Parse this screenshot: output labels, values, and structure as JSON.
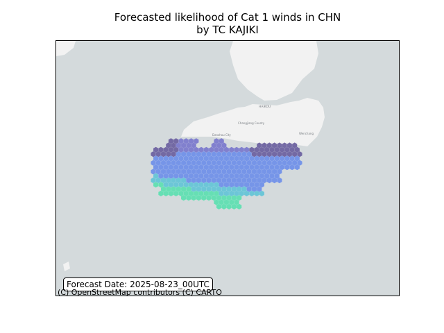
{
  "title": {
    "line1": "Forecasted likelihood of Cat 1 winds in CHN",
    "line2": "by TC KAJIKI"
  },
  "forecast_date": "Forecast Date: 2025-08-23_00UTC",
  "attribution": "(C) OpenStreetMap contributors (C) CARTO",
  "map_labels": {
    "haikou": "HAIKOU",
    "changjiang": "Changjiang County",
    "danzhou": "Danzhou City",
    "wenchang": "Wenchang"
  },
  "colors": {
    "ocean": "#d4dadc",
    "land": "#f2f2f2",
    "high_probability": "#6a5f9e",
    "medium_probability": "#6e8fe8",
    "low_probability": "#5ce0b0"
  }
}
